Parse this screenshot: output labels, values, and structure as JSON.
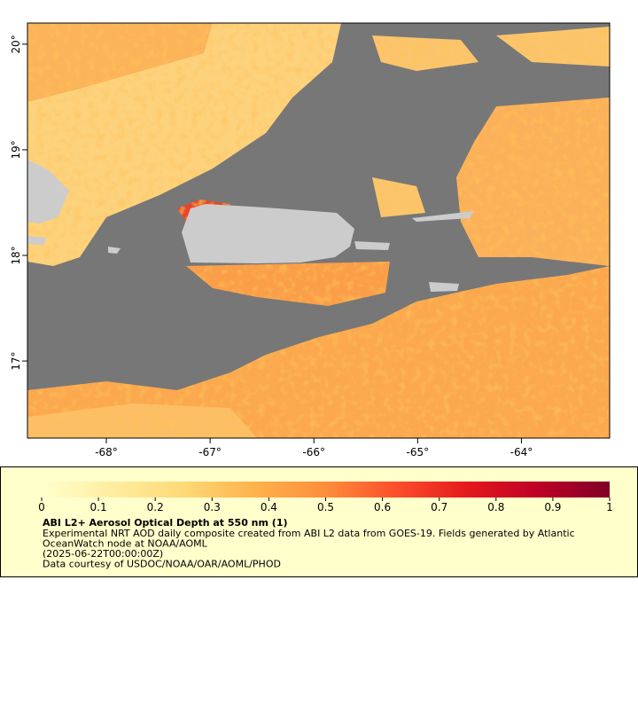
{
  "map": {
    "xlim": [
      -68.76,
      -63.15
    ],
    "ylim": [
      16.27,
      20.2
    ],
    "xticks": [
      {
        "value": -68,
        "label": "-68°"
      },
      {
        "value": -67,
        "label": "-67°"
      },
      {
        "value": -66,
        "label": "-66°"
      },
      {
        "value": -65,
        "label": "-65°"
      },
      {
        "value": -64,
        "label": "-64°"
      }
    ],
    "yticks": [
      {
        "value": 17,
        "label": "17°"
      },
      {
        "value": 18,
        "label": "18°"
      },
      {
        "value": 19,
        "label": "19°"
      },
      {
        "value": 20,
        "label": "20°"
      }
    ]
  },
  "legend": {
    "range": [
      0,
      1
    ],
    "ticks": [
      0,
      0.1,
      0.2,
      0.3,
      0.4,
      0.5,
      0.6,
      0.7,
      0.8,
      0.9,
      1
    ],
    "colors": [
      "#ffffcc",
      "#ffeda0",
      "#fed976",
      "#feb24c",
      "#fd8d3c",
      "#fc4e2a",
      "#e31a1c",
      "#bd0026",
      "#800026"
    ],
    "title": "ABI L2+ Aerosol Optical Depth at 550 nm (1)",
    "lines": [
      "Experimental NRT AOD daily composite created from ABI L2 data from GOES-19. Fields generated by Atlantic",
      "OceanWatch node at NOAA/AOML",
      "(2025-06-22T00:00:00Z)",
      "Data courtesy of USDOC/NOAA/OAR/AOML/PHOD"
    ]
  }
}
